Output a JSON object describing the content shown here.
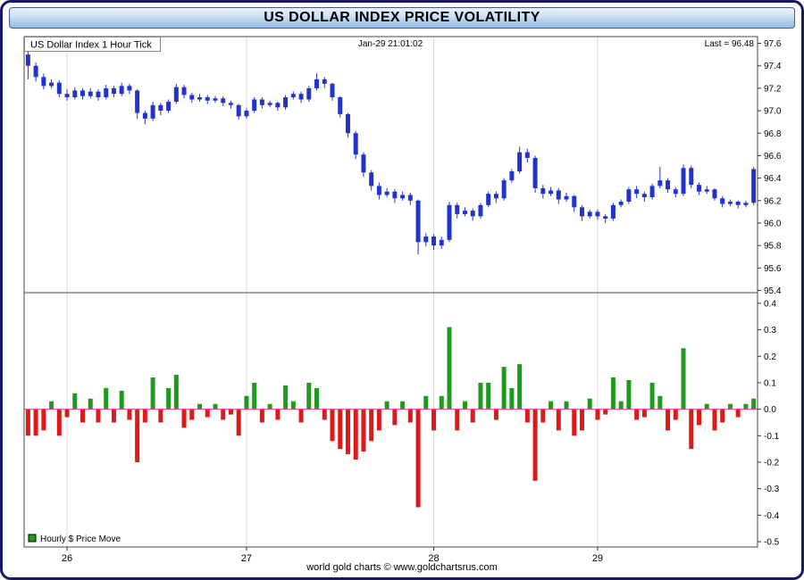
{
  "window": {
    "title": "US DOLLAR INDEX PRICE VOLATILITY"
  },
  "chart_header": {
    "left": "US Dollar Index 1 Hour Tick",
    "center": "Jan-29  21:01:02",
    "right": "Last = 96.48"
  },
  "legend": {
    "label": "Hourly $ Price Move",
    "swatch_color": "#1e9a1e"
  },
  "footer": {
    "credit": "world gold charts © www.goldchartsrus.com"
  },
  "colors": {
    "candle": "#2233cc",
    "positive_bar": "#1e9a1e",
    "negative_bar": "#e01818",
    "zero_line": "#ee33aa",
    "frame": "#444444",
    "day_grid": "#dadada",
    "card_border": "#181868"
  },
  "chart_data": [
    {
      "type": "candlestick",
      "title": "US Dollar Index 1 Hour Tick",
      "timestamp": "Jan-29 21:01:02",
      "last": 96.48,
      "ylim": [
        95.4,
        97.6
      ],
      "yticks": [
        97.6,
        97.4,
        97.2,
        97.0,
        96.8,
        96.6,
        96.4,
        96.2,
        96.0,
        95.8,
        95.6,
        95.4
      ],
      "x_day_ticks": [
        {
          "label": "26",
          "index": 5
        },
        {
          "label": "27",
          "index": 28
        },
        {
          "label": "28",
          "index": 52
        },
        {
          "label": "29",
          "index": 73
        }
      ],
      "color": "#2233cc",
      "candles": [
        [
          97.5,
          97.56,
          97.28,
          97.4
        ],
        [
          97.4,
          97.43,
          97.26,
          97.3
        ],
        [
          97.3,
          97.33,
          97.19,
          97.22
        ],
        [
          97.22,
          97.28,
          97.2,
          97.25
        ],
        [
          97.25,
          97.27,
          97.12,
          97.15
        ],
        [
          97.15,
          97.19,
          97.09,
          97.12
        ],
        [
          97.12,
          97.21,
          97.1,
          97.18
        ],
        [
          97.18,
          97.2,
          97.1,
          97.13
        ],
        [
          97.13,
          97.2,
          97.11,
          97.17
        ],
        [
          97.17,
          97.19,
          97.09,
          97.12
        ],
        [
          97.12,
          97.23,
          97.1,
          97.2
        ],
        [
          97.2,
          97.22,
          97.12,
          97.15
        ],
        [
          97.15,
          97.25,
          97.13,
          97.22
        ],
        [
          97.22,
          97.24,
          97.15,
          97.18
        ],
        [
          97.18,
          97.19,
          96.93,
          96.98
        ],
        [
          96.98,
          97.0,
          96.88,
          96.93
        ],
        [
          96.93,
          97.08,
          96.91,
          97.05
        ],
        [
          97.05,
          97.07,
          96.96,
          97.0
        ],
        [
          97.0,
          97.1,
          96.98,
          97.08
        ],
        [
          97.08,
          97.24,
          97.06,
          97.21
        ],
        [
          97.21,
          97.23,
          97.11,
          97.14
        ],
        [
          97.14,
          97.16,
          97.07,
          97.1
        ],
        [
          97.1,
          97.15,
          97.08,
          97.12
        ],
        [
          97.12,
          97.14,
          97.06,
          97.09
        ],
        [
          97.09,
          97.13,
          97.07,
          97.11
        ],
        [
          97.11,
          97.13,
          97.04,
          97.07
        ],
        [
          97.07,
          97.09,
          97.02,
          97.05
        ],
        [
          97.05,
          97.06,
          96.92,
          96.95
        ],
        [
          96.95,
          97.02,
          96.93,
          97.0
        ],
        [
          97.0,
          97.12,
          96.98,
          97.1
        ],
        [
          97.1,
          97.12,
          97.02,
          97.05
        ],
        [
          97.05,
          97.09,
          97.03,
          97.07
        ],
        [
          97.07,
          97.08,
          97.0,
          97.03
        ],
        [
          97.03,
          97.14,
          97.01,
          97.12
        ],
        [
          97.12,
          97.17,
          97.1,
          97.15
        ],
        [
          97.15,
          97.17,
          97.07,
          97.1
        ],
        [
          97.1,
          97.22,
          97.08,
          97.2
        ],
        [
          97.2,
          97.33,
          97.18,
          97.28
        ],
        [
          97.28,
          97.3,
          97.2,
          97.24
        ],
        [
          97.24,
          97.25,
          97.09,
          97.12
        ],
        [
          97.12,
          97.13,
          96.94,
          96.97
        ],
        [
          96.97,
          96.98,
          96.76,
          96.8
        ],
        [
          96.8,
          96.82,
          96.57,
          96.61
        ],
        [
          96.61,
          96.63,
          96.41,
          96.45
        ],
        [
          96.45,
          96.47,
          96.29,
          96.33
        ],
        [
          96.33,
          96.36,
          96.21,
          96.25
        ],
        [
          96.25,
          96.31,
          96.23,
          96.28
        ],
        [
          96.28,
          96.3,
          96.18,
          96.22
        ],
        [
          96.22,
          96.28,
          96.2,
          96.25
        ],
        [
          96.25,
          96.27,
          96.16,
          96.2
        ],
        [
          96.2,
          96.21,
          95.72,
          95.83
        ],
        [
          95.83,
          95.91,
          95.79,
          95.88
        ],
        [
          95.88,
          95.9,
          95.76,
          95.8
        ],
        [
          95.8,
          95.88,
          95.77,
          95.85
        ],
        [
          95.85,
          96.19,
          95.83,
          96.16
        ],
        [
          96.16,
          96.18,
          96.04,
          96.08
        ],
        [
          96.08,
          96.14,
          96.06,
          96.11
        ],
        [
          96.11,
          96.13,
          96.02,
          96.06
        ],
        [
          96.06,
          96.18,
          96.04,
          96.16
        ],
        [
          96.16,
          96.28,
          96.14,
          96.26
        ],
        [
          96.26,
          96.28,
          96.18,
          96.22
        ],
        [
          96.22,
          96.4,
          96.2,
          96.38
        ],
        [
          96.38,
          96.48,
          96.36,
          96.46
        ],
        [
          96.46,
          96.68,
          96.44,
          96.63
        ],
        [
          96.63,
          96.66,
          96.54,
          96.58
        ],
        [
          96.58,
          96.6,
          96.27,
          96.31
        ],
        [
          96.31,
          96.34,
          96.22,
          96.26
        ],
        [
          96.26,
          96.32,
          96.24,
          96.29
        ],
        [
          96.29,
          96.31,
          96.17,
          96.21
        ],
        [
          96.21,
          96.27,
          96.19,
          96.24
        ],
        [
          96.24,
          96.25,
          96.1,
          96.14
        ],
        [
          96.14,
          96.16,
          96.02,
          96.06
        ],
        [
          96.06,
          96.12,
          96.04,
          96.1
        ],
        [
          96.1,
          96.12,
          96.03,
          96.06
        ],
        [
          96.06,
          96.08,
          96.0,
          96.04
        ],
        [
          96.04,
          96.18,
          96.02,
          96.16
        ],
        [
          96.16,
          96.21,
          96.14,
          96.19
        ],
        [
          96.19,
          96.32,
          96.17,
          96.3
        ],
        [
          96.3,
          96.33,
          96.22,
          96.26
        ],
        [
          96.26,
          96.28,
          96.19,
          96.23
        ],
        [
          96.23,
          96.35,
          96.21,
          96.33
        ],
        [
          96.33,
          96.5,
          96.31,
          96.38
        ],
        [
          96.38,
          96.4,
          96.27,
          96.3
        ],
        [
          96.3,
          96.32,
          96.23,
          96.26
        ],
        [
          96.26,
          96.52,
          96.24,
          96.49
        ],
        [
          96.49,
          96.51,
          96.31,
          96.34
        ],
        [
          96.34,
          96.36,
          96.25,
          96.28
        ],
        [
          96.28,
          96.33,
          96.26,
          96.3
        ],
        [
          96.3,
          96.31,
          96.2,
          96.22
        ],
        [
          96.22,
          96.24,
          96.14,
          96.17
        ],
        [
          96.17,
          96.21,
          96.15,
          96.19
        ],
        [
          96.19,
          96.2,
          96.13,
          96.16
        ],
        [
          96.16,
          96.2,
          96.14,
          96.18
        ],
        [
          96.18,
          96.5,
          96.16,
          96.48
        ]
      ]
    },
    {
      "type": "bar",
      "name": "Hourly $ Price Move",
      "ylim": [
        -0.5,
        0.4
      ],
      "yticks": [
        0.4,
        0.3,
        0.2,
        0.1,
        0.0,
        -0.1,
        -0.2,
        -0.3,
        -0.4,
        -0.5
      ],
      "positive_color": "#1e9a1e",
      "negative_color": "#e01818",
      "zero_line_color": "#ee33aa",
      "values": [
        -0.1,
        -0.1,
        -0.08,
        0.03,
        -0.1,
        -0.03,
        0.06,
        -0.05,
        0.04,
        -0.05,
        0.08,
        -0.05,
        0.07,
        -0.04,
        -0.2,
        -0.05,
        0.12,
        -0.05,
        0.08,
        0.13,
        -0.07,
        -0.04,
        0.02,
        -0.03,
        0.02,
        -0.04,
        -0.02,
        -0.1,
        0.05,
        0.1,
        -0.05,
        0.02,
        -0.04,
        0.09,
        0.03,
        -0.05,
        0.1,
        0.08,
        -0.04,
        -0.12,
        -0.15,
        -0.17,
        -0.19,
        -0.16,
        -0.12,
        -0.08,
        0.03,
        -0.06,
        0.03,
        -0.05,
        -0.37,
        0.05,
        -0.08,
        0.05,
        0.31,
        -0.08,
        0.03,
        -0.05,
        0.1,
        0.1,
        -0.04,
        0.16,
        0.08,
        0.17,
        -0.05,
        -0.27,
        -0.05,
        0.03,
        -0.08,
        0.03,
        -0.1,
        -0.08,
        0.04,
        -0.04,
        -0.02,
        0.12,
        0.03,
        0.11,
        -0.04,
        -0.03,
        0.1,
        0.05,
        -0.08,
        -0.04,
        0.23,
        -0.15,
        -0.06,
        0.02,
        -0.08,
        -0.05,
        0.02,
        -0.03,
        0.02,
        0.04
      ]
    }
  ]
}
